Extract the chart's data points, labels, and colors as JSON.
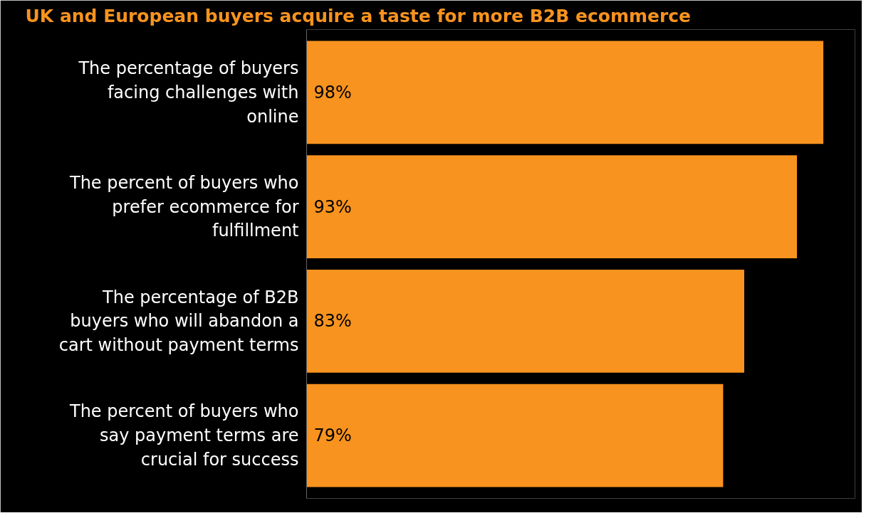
{
  "chart_data": {
    "type": "bar",
    "orientation": "horizontal",
    "title": "UK and European buyers acquire a taste for more B2B ecommerce",
    "categories": [
      "The percentage of buyers facing challenges with online",
      "The percent of buyers who prefer ecommerce for fulfillment",
      "The percentage of B2B buyers who will abandon a cart without payment terms",
      "The percent of buyers who say payment terms are crucial for success"
    ],
    "values": [
      98,
      93,
      83,
      79
    ],
    "value_labels": [
      "98%",
      "93%",
      "83%",
      "79%"
    ],
    "color": "#f7931e",
    "xlim": [
      0,
      104
    ],
    "tick_labels": "y",
    "grid": false
  }
}
